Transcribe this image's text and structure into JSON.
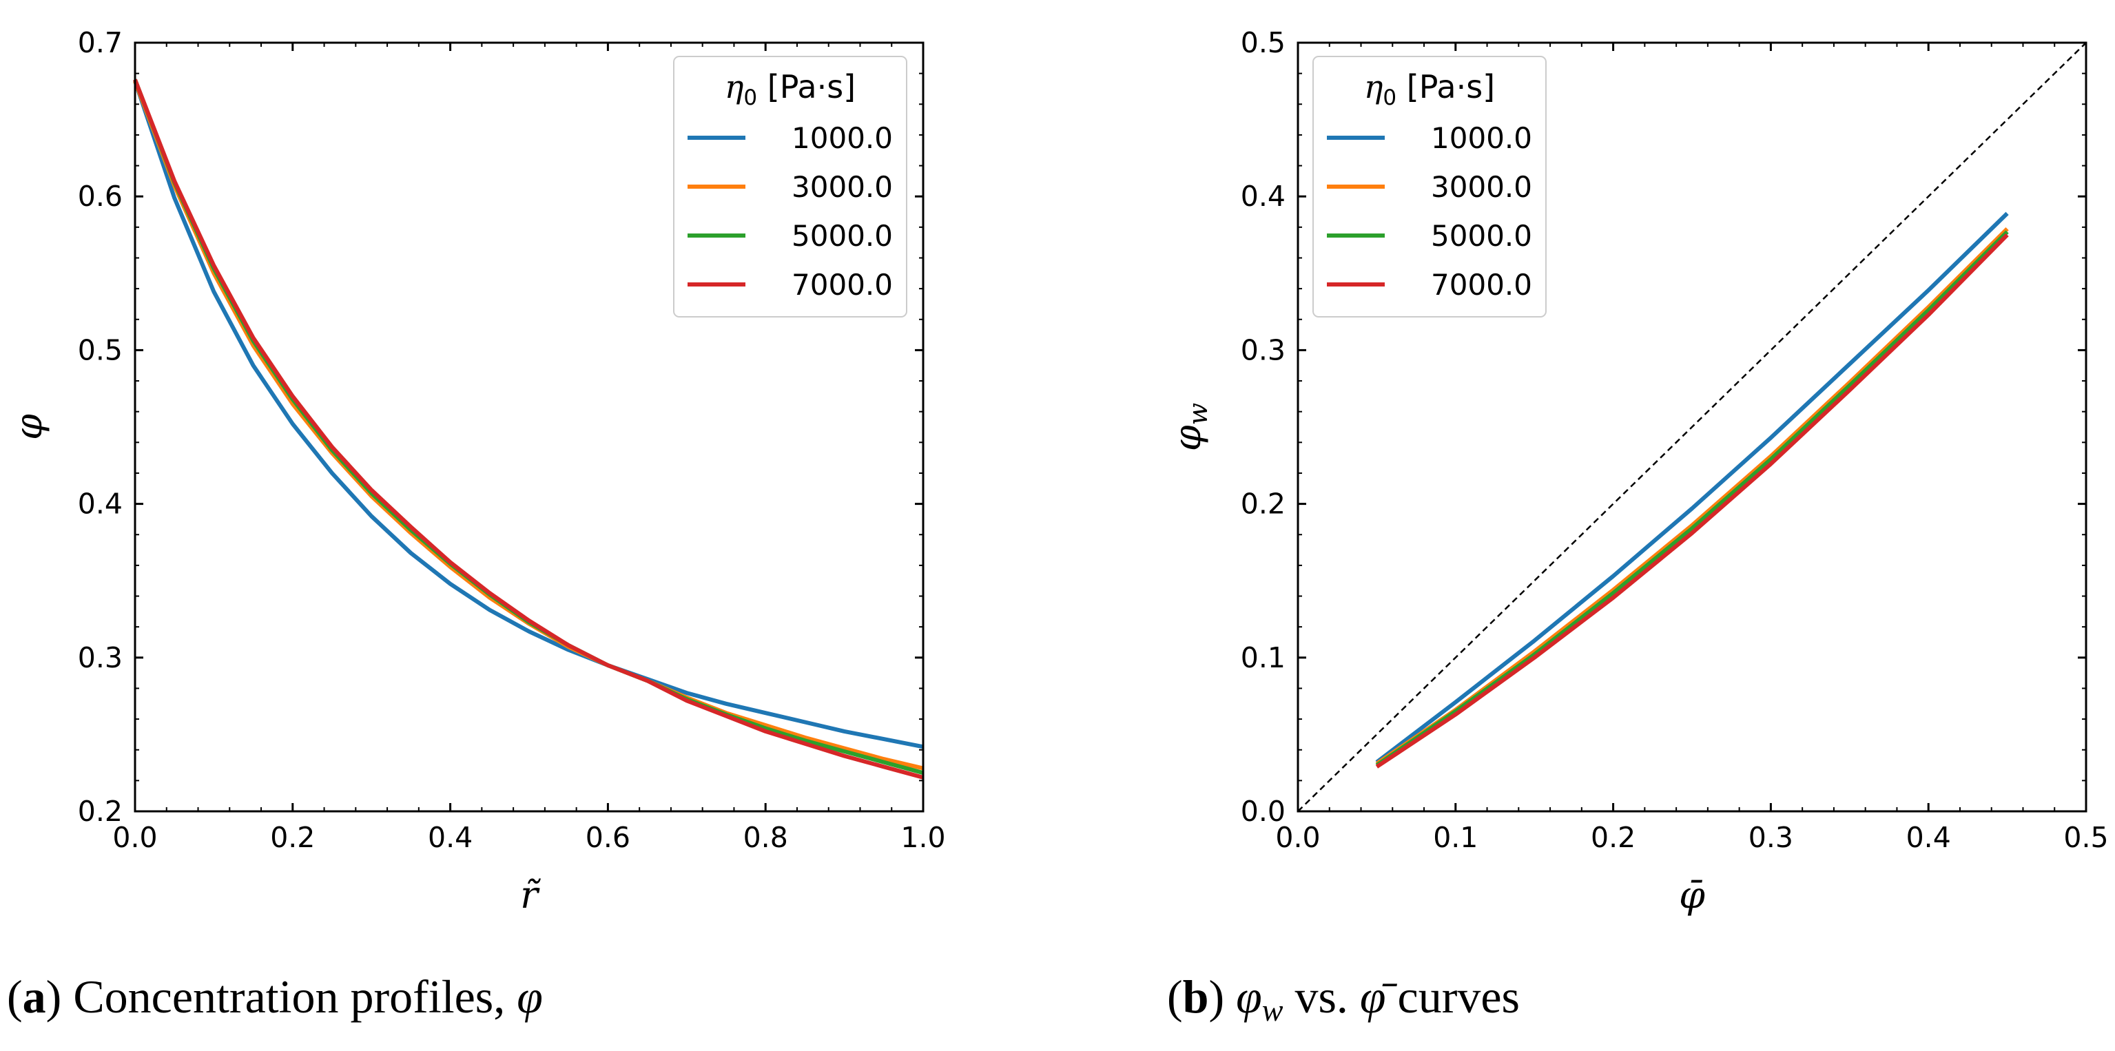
{
  "chart_data": [
    {
      "type": "line",
      "xlabel": "r̃",
      "ylabel": "φ",
      "xlim": [
        0.0,
        1.0
      ],
      "ylim": [
        0.2,
        0.7
      ],
      "xticks": [
        "0.0",
        "0.2",
        "0.4",
        "0.6",
        "0.8",
        "1.0"
      ],
      "yticks": [
        "0.2",
        "0.3",
        "0.4",
        "0.5",
        "0.6",
        "0.7"
      ],
      "grid": false,
      "legend": {
        "placement": "top-right",
        "title_symbol": "η",
        "title_subscript": "0",
        "title_unit": " [Pa·s]"
      },
      "x": [
        0.0,
        0.05,
        0.1,
        0.15,
        0.2,
        0.25,
        0.3,
        0.35,
        0.4,
        0.45,
        0.5,
        0.55,
        0.6,
        0.65,
        0.7,
        0.75,
        0.8,
        0.85,
        0.9,
        0.95,
        1.0
      ],
      "series": [
        {
          "name": "1000.0",
          "color": "#1f77b4",
          "values": [
            0.675,
            0.599,
            0.538,
            0.49,
            0.452,
            0.42,
            0.392,
            0.368,
            0.348,
            0.331,
            0.317,
            0.305,
            0.295,
            0.286,
            0.277,
            0.27,
            0.264,
            0.258,
            0.252,
            0.247,
            0.242
          ]
        },
        {
          "name": "3000.0",
          "color": "#ff7f0e",
          "values": [
            0.675,
            0.607,
            0.55,
            0.503,
            0.465,
            0.433,
            0.405,
            0.381,
            0.359,
            0.339,
            0.322,
            0.307,
            0.295,
            0.285,
            0.274,
            0.264,
            0.256,
            0.248,
            0.241,
            0.234,
            0.228
          ]
        },
        {
          "name": "5000.0",
          "color": "#2ca02c",
          "values": [
            0.676,
            0.609,
            0.553,
            0.506,
            0.468,
            0.435,
            0.407,
            0.383,
            0.361,
            0.341,
            0.323,
            0.308,
            0.295,
            0.285,
            0.273,
            0.263,
            0.254,
            0.246,
            0.239,
            0.232,
            0.225
          ]
        },
        {
          "name": "7000.0",
          "color": "#d62728",
          "values": [
            0.676,
            0.61,
            0.555,
            0.508,
            0.47,
            0.437,
            0.409,
            0.385,
            0.362,
            0.342,
            0.324,
            0.308,
            0.295,
            0.285,
            0.272,
            0.262,
            0.252,
            0.244,
            0.236,
            0.229,
            0.222
          ]
        }
      ]
    },
    {
      "type": "line",
      "xlabel": "φ̄",
      "ylabel": "φ_w",
      "xlim": [
        0.0,
        0.5
      ],
      "ylim": [
        0.0,
        0.5
      ],
      "xticks": [
        "0.0",
        "0.1",
        "0.2",
        "0.3",
        "0.4",
        "0.5"
      ],
      "yticks": [
        "0.0",
        "0.1",
        "0.2",
        "0.3",
        "0.4",
        "0.5"
      ],
      "grid": false,
      "reference_line": "y = x, black dashed",
      "legend": {
        "placement": "top-left",
        "title_symbol": "η",
        "title_subscript": "0",
        "title_unit": " [Pa·s]"
      },
      "x": [
        0.05,
        0.1,
        0.15,
        0.2,
        0.25,
        0.3,
        0.35,
        0.4,
        0.45
      ],
      "series": [
        {
          "name": "1000.0",
          "color": "#1f77b4",
          "values": [
            0.032,
            0.071,
            0.111,
            0.153,
            0.197,
            0.243,
            0.291,
            0.339,
            0.389
          ]
        },
        {
          "name": "3000.0",
          "color": "#ff7f0e",
          "values": [
            0.031,
            0.066,
            0.104,
            0.144,
            0.186,
            0.231,
            0.279,
            0.328,
            0.379
          ]
        },
        {
          "name": "5000.0",
          "color": "#2ca02c",
          "values": [
            0.03,
            0.065,
            0.102,
            0.142,
            0.184,
            0.229,
            0.277,
            0.326,
            0.377
          ]
        },
        {
          "name": "7000.0",
          "color": "#d62728",
          "values": [
            0.029,
            0.063,
            0.1,
            0.139,
            0.181,
            0.226,
            0.274,
            0.323,
            0.375
          ]
        }
      ]
    }
  ],
  "captions": [
    {
      "tag": "a",
      "text": " Concentration profiles, ",
      "symbol": "φ"
    },
    {
      "tag": "b",
      "symbol1": "φ",
      "sub1": "w",
      "mid": " vs. ",
      "symbol2": "φ̄",
      "tail": " curves"
    }
  ]
}
